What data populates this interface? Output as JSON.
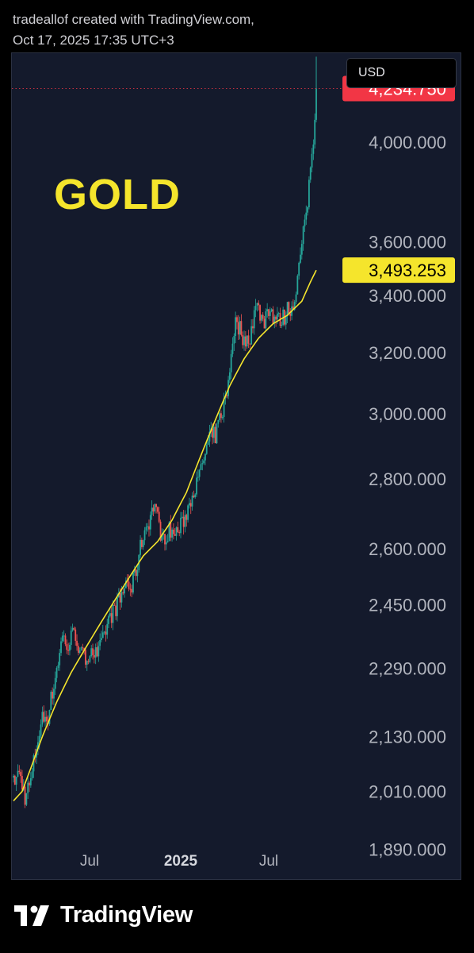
{
  "header": {
    "line1": "tradeallof created with TradingView.com,",
    "line2": "Oct 17, 2025 17:35 UTC+3"
  },
  "currency": "USD",
  "brand": "TradingView",
  "colors": {
    "background": "#141a2c",
    "up": "#26a69a",
    "down": "#ef5350",
    "ma": "#f5e52c",
    "last_price_badge": "#f23645",
    "ma_badge": "#f5e52c"
  },
  "chart_data": {
    "type": "candlestick",
    "title": "GOLD",
    "scale": "log",
    "ylim": [
      1830,
      4400
    ],
    "y_ticks": [
      "4,000.000",
      "3,600.000",
      "3,400.000",
      "3,200.000",
      "3,000.000",
      "2,800.000",
      "2,600.000",
      "2,450.000",
      "2,290.000",
      "2,130.000",
      "2,010.000",
      "1,890.000"
    ],
    "y_tick_values": [
      4000,
      3600,
      3400,
      3200,
      3000,
      2800,
      2600,
      2450,
      2290,
      2130,
      2010,
      1890
    ],
    "x_ticks": [
      {
        "label": "Jul",
        "bold": false
      },
      {
        "label": "2025",
        "bold": true
      },
      {
        "label": "Jul",
        "bold": false
      }
    ],
    "last_price": {
      "value": 4234.75,
      "label": "4,234.750",
      "color": "#f23645"
    },
    "ma_value": {
      "value": 3493.253,
      "label": "3,493.253",
      "color": "#f5e52c"
    },
    "moving_average_anchors": [
      [
        0,
        1990
      ],
      [
        6,
        2010
      ],
      [
        12,
        2060
      ],
      [
        20,
        2130
      ],
      [
        30,
        2210
      ],
      [
        40,
        2280
      ],
      [
        50,
        2340
      ],
      [
        60,
        2400
      ],
      [
        70,
        2460
      ],
      [
        80,
        2520
      ],
      [
        90,
        2580
      ],
      [
        100,
        2620
      ],
      [
        110,
        2680
      ],
      [
        120,
        2760
      ],
      [
        130,
        2870
      ],
      [
        140,
        2980
      ],
      [
        150,
        3090
      ],
      [
        160,
        3180
      ],
      [
        170,
        3250
      ],
      [
        180,
        3300
      ],
      [
        190,
        3330
      ],
      [
        200,
        3380
      ],
      [
        206,
        3450
      ],
      [
        210,
        3493
      ]
    ],
    "close_anchors": [
      [
        0,
        2030
      ],
      [
        4,
        2050
      ],
      [
        8,
        2000
      ],
      [
        12,
        2030
      ],
      [
        16,
        2110
      ],
      [
        20,
        2170
      ],
      [
        24,
        2180
      ],
      [
        28,
        2250
      ],
      [
        32,
        2330
      ],
      [
        34,
        2370
      ],
      [
        38,
        2340
      ],
      [
        42,
        2390
      ],
      [
        46,
        2330
      ],
      [
        50,
        2310
      ],
      [
        54,
        2340
      ],
      [
        58,
        2320
      ],
      [
        62,
        2360
      ],
      [
        66,
        2410
      ],
      [
        70,
        2440
      ],
      [
        74,
        2460
      ],
      [
        78,
        2510
      ],
      [
        82,
        2490
      ],
      [
        86,
        2560
      ],
      [
        90,
        2640
      ],
      [
        94,
        2680
      ],
      [
        98,
        2730
      ],
      [
        100,
        2680
      ],
      [
        104,
        2620
      ],
      [
        108,
        2650
      ],
      [
        112,
        2640
      ],
      [
        116,
        2660
      ],
      [
        120,
        2700
      ],
      [
        124,
        2760
      ],
      [
        128,
        2790
      ],
      [
        132,
        2860
      ],
      [
        136,
        2920
      ],
      [
        140,
        2930
      ],
      [
        144,
        3000
      ],
      [
        148,
        3060
      ],
      [
        150,
        3150
      ],
      [
        152,
        3250
      ],
      [
        154,
        3300
      ],
      [
        158,
        3280
      ],
      [
        160,
        3230
      ],
      [
        164,
        3260
      ],
      [
        168,
        3360
      ],
      [
        170,
        3350
      ],
      [
        174,
        3300
      ],
      [
        176,
        3370
      ],
      [
        180,
        3330
      ],
      [
        184,
        3310
      ],
      [
        188,
        3330
      ],
      [
        190,
        3350
      ],
      [
        194,
        3360
      ],
      [
        198,
        3500
      ],
      [
        200,
        3600
      ],
      [
        202,
        3650
      ],
      [
        204,
        3760
      ],
      [
        206,
        3900
      ],
      [
        208,
        4020
      ],
      [
        210,
        4230
      ]
    ],
    "n_candles": 211
  }
}
